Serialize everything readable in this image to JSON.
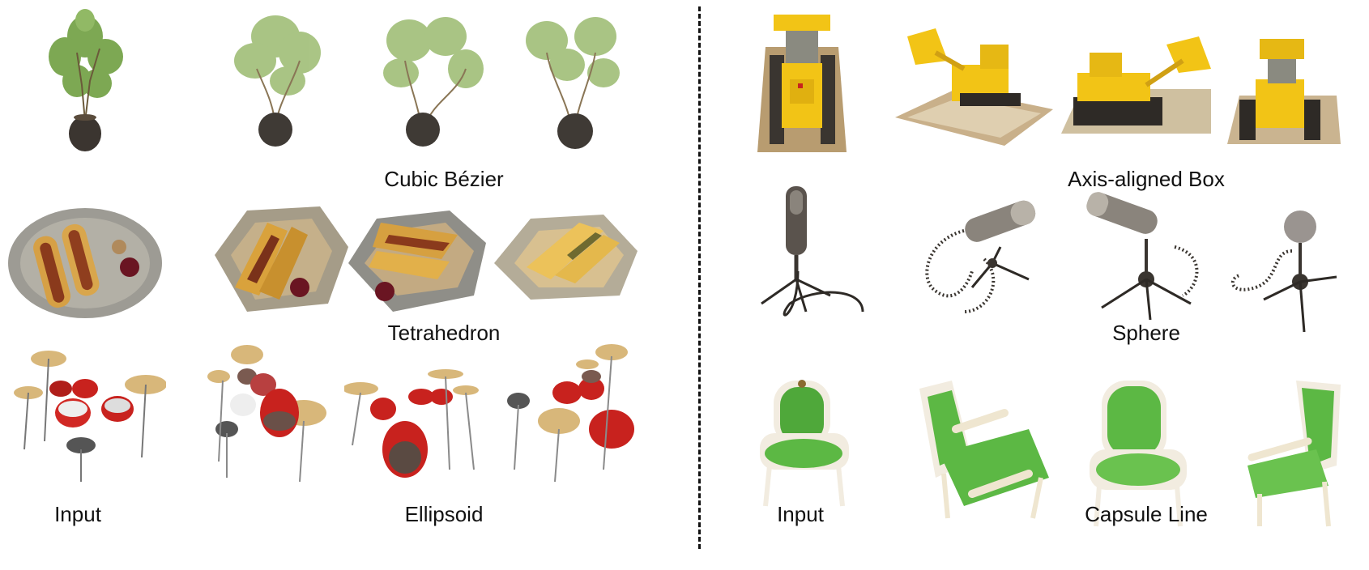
{
  "labels": {
    "cubic_bezier": "Cubic Bézier",
    "tetrahedron": "Tetrahedron",
    "ellipsoid": "Ellipsoid",
    "input_left": "Input",
    "axis_aligned_box": "Axis-aligned Box",
    "sphere": "Sphere",
    "capsule_line": "Capsule Line",
    "input_right": "Input"
  },
  "colors": {
    "plant_leaf": "#7aa84a",
    "plant_pot": "#3a3a38",
    "plate": "#9a9890",
    "hotdog_bun": "#d9a23c",
    "sausage": "#8a3a1c",
    "drum_red": "#c8221e",
    "cymbal": "#d8b77a",
    "lego_yellow": "#f2c416",
    "lego_base": "#a58a5e",
    "mic_metal": "#5a534d",
    "chair_green": "#4fa83a",
    "chair_frame": "#f2ece0"
  },
  "objects": {
    "left_rows": [
      "plant",
      "hotdog",
      "drums"
    ],
    "right_rows": [
      "lego-bulldozer",
      "microphone",
      "armchair"
    ]
  }
}
